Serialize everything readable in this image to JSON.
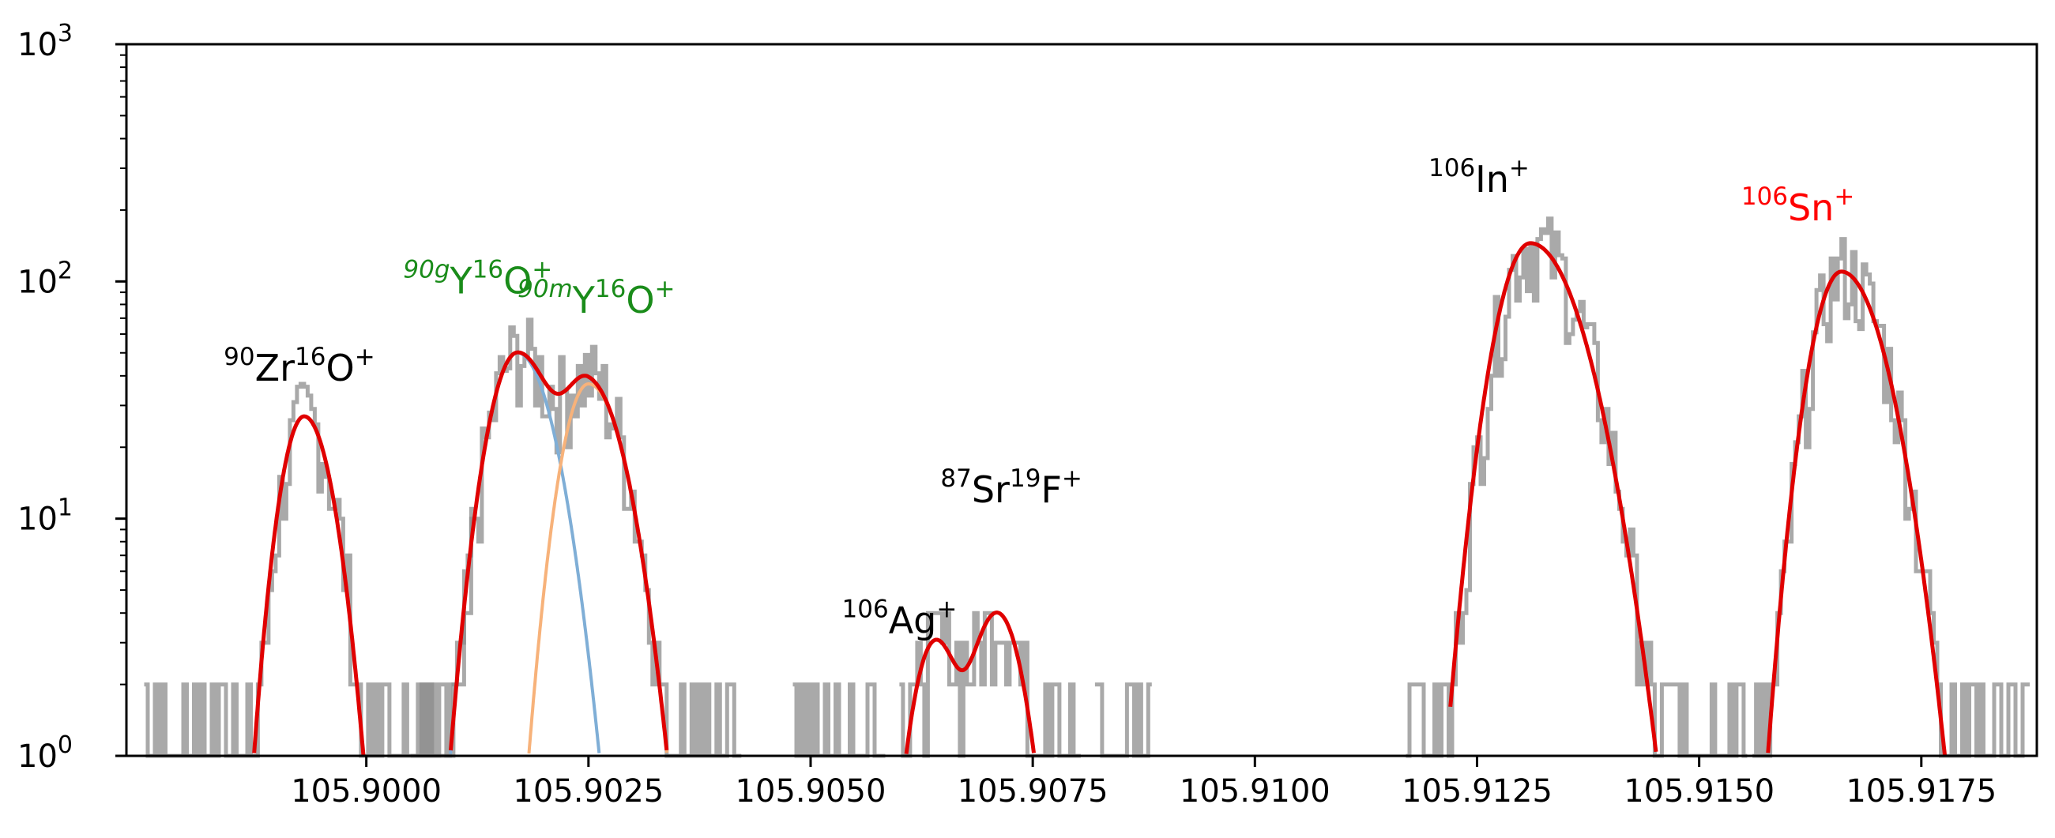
{
  "chart_data": {
    "type": "line",
    "title": "",
    "xlabel": "",
    "ylabel": "",
    "xlim": [
      105.8973,
      105.9188
    ],
    "ylim": [
      1,
      1000
    ],
    "yscale": "log",
    "grid": false,
    "x_ticks": [
      105.9,
      105.9025,
      105.905,
      105.9075,
      105.91,
      105.9125,
      105.915,
      105.9175
    ],
    "x_tick_labels": [
      "105.9000",
      "105.9025",
      "105.9050",
      "105.9075",
      "105.9100",
      "105.9125",
      "105.9150",
      "105.9175"
    ],
    "y_ticks": [
      {
        "value": 1,
        "base": "10",
        "exp": "0"
      },
      {
        "value": 10,
        "base": "10",
        "exp": "1"
      },
      {
        "value": 100,
        "base": "10",
        "exp": "2"
      },
      {
        "value": 1000,
        "base": "10",
        "exp": "3"
      }
    ],
    "colors": {
      "histogram": "#8c8c8c",
      "fit": "#e00000",
      "component_1": "#7faed6",
      "component_2": "#f7b27a",
      "label_black": "#000000",
      "label_green": "#1a8c1a",
      "label_red": "#ff0000"
    },
    "peaks": [
      {
        "id": "zro",
        "x0": 105.8993,
        "amp": 27,
        "sigma_left": 0.00022,
        "sigma_right": 0.00026,
        "parts": [
          {
            "sup": "90",
            "base": "Zr"
          },
          {
            "sup": "16",
            "base": "O"
          },
          {
            "sup": "+",
            "base": ""
          }
        ],
        "color": "#000000"
      },
      {
        "id": "ygo",
        "x0": 105.9017,
        "amp": 50,
        "sigma_left": 0.00027,
        "sigma_right": 0.00033,
        "parts": [
          {
            "sup": "90g",
            "base": "Y"
          },
          {
            "sup": "16",
            "base": "O"
          },
          {
            "sup": "+",
            "base": ""
          }
        ],
        "color": "#1a8c1a"
      },
      {
        "id": "ymo",
        "x0": 105.9025,
        "amp": 37,
        "sigma_left": 0.00025,
        "sigma_right": 0.00033,
        "parts": [
          {
            "sup": "90m",
            "base": "Y"
          },
          {
            "sup": "16",
            "base": "O"
          },
          {
            "sup": "+",
            "base": ""
          }
        ],
        "color": "#1a8c1a"
      },
      {
        "id": "ag",
        "x0": 105.9064,
        "amp": 3.0,
        "sigma_left": 0.00022,
        "sigma_right": 0.00022,
        "parts": [
          {
            "sup": "106",
            "base": "Ag"
          },
          {
            "sup": "+",
            "base": ""
          }
        ],
        "color": "#000000"
      },
      {
        "id": "srf",
        "x0": 105.9071,
        "amp": 4.0,
        "sigma_left": 0.00025,
        "sigma_right": 0.00025,
        "parts": [
          {
            "sup": "87",
            "base": "Sr"
          },
          {
            "sup": "19",
            "base": "F"
          },
          {
            "sup": "+",
            "base": ""
          }
        ],
        "color": "#000000"
      },
      {
        "id": "in",
        "x0": 105.9131,
        "amp": 145,
        "sigma_left": 0.0003,
        "sigma_right": 0.00045,
        "parts": [
          {
            "sup": "106",
            "base": "In"
          },
          {
            "sup": "+",
            "base": ""
          }
        ],
        "color": "#000000"
      },
      {
        "id": "sn",
        "x0": 105.9166,
        "amp": 110,
        "sigma_left": 0.00027,
        "sigma_right": 0.00038,
        "parts": [
          {
            "sup": "106",
            "base": "Sn"
          },
          {
            "sup": "+",
            "base": ""
          }
        ],
        "color": "#ff0000"
      }
    ],
    "fit_segments": [
      {
        "name": "",
        "range": [
          105.8975,
          105.9,
          105.9005
        ],
        "peaks": [
          "zro"
        ]
      },
      {
        "name": "",
        "range": [
          105.9005,
          105.9035
        ],
        "peaks": [
          "ygo",
          "ymo"
        ]
      },
      {
        "name": "",
        "range": [
          105.906,
          105.9078
        ],
        "peaks": [
          "ag",
          "srf"
        ]
      },
      {
        "name": "",
        "range": [
          105.9122,
          105.9148
        ],
        "peaks": [
          "in"
        ]
      },
      {
        "name": "",
        "range": [
          105.9157,
          105.918
        ],
        "peaks": [
          "sn"
        ]
      }
    ],
    "components": [
      {
        "peak": "ygo",
        "range": [
          105.9008,
          105.9028
        ],
        "color": "#7faed6"
      },
      {
        "peak": "ymo",
        "range": [
          105.9017,
          105.9034
        ],
        "color": "#f7b27a"
      }
    ],
    "histogram_ranges": [
      [
        105.8975,
        105.9012
      ],
      [
        105.9005,
        105.9042
      ],
      [
        105.9048,
        105.9058
      ],
      [
        105.906,
        105.908
      ],
      [
        105.9082,
        105.9088
      ],
      [
        105.9117,
        105.9155
      ],
      [
        105.9156,
        105.9187
      ]
    ]
  }
}
